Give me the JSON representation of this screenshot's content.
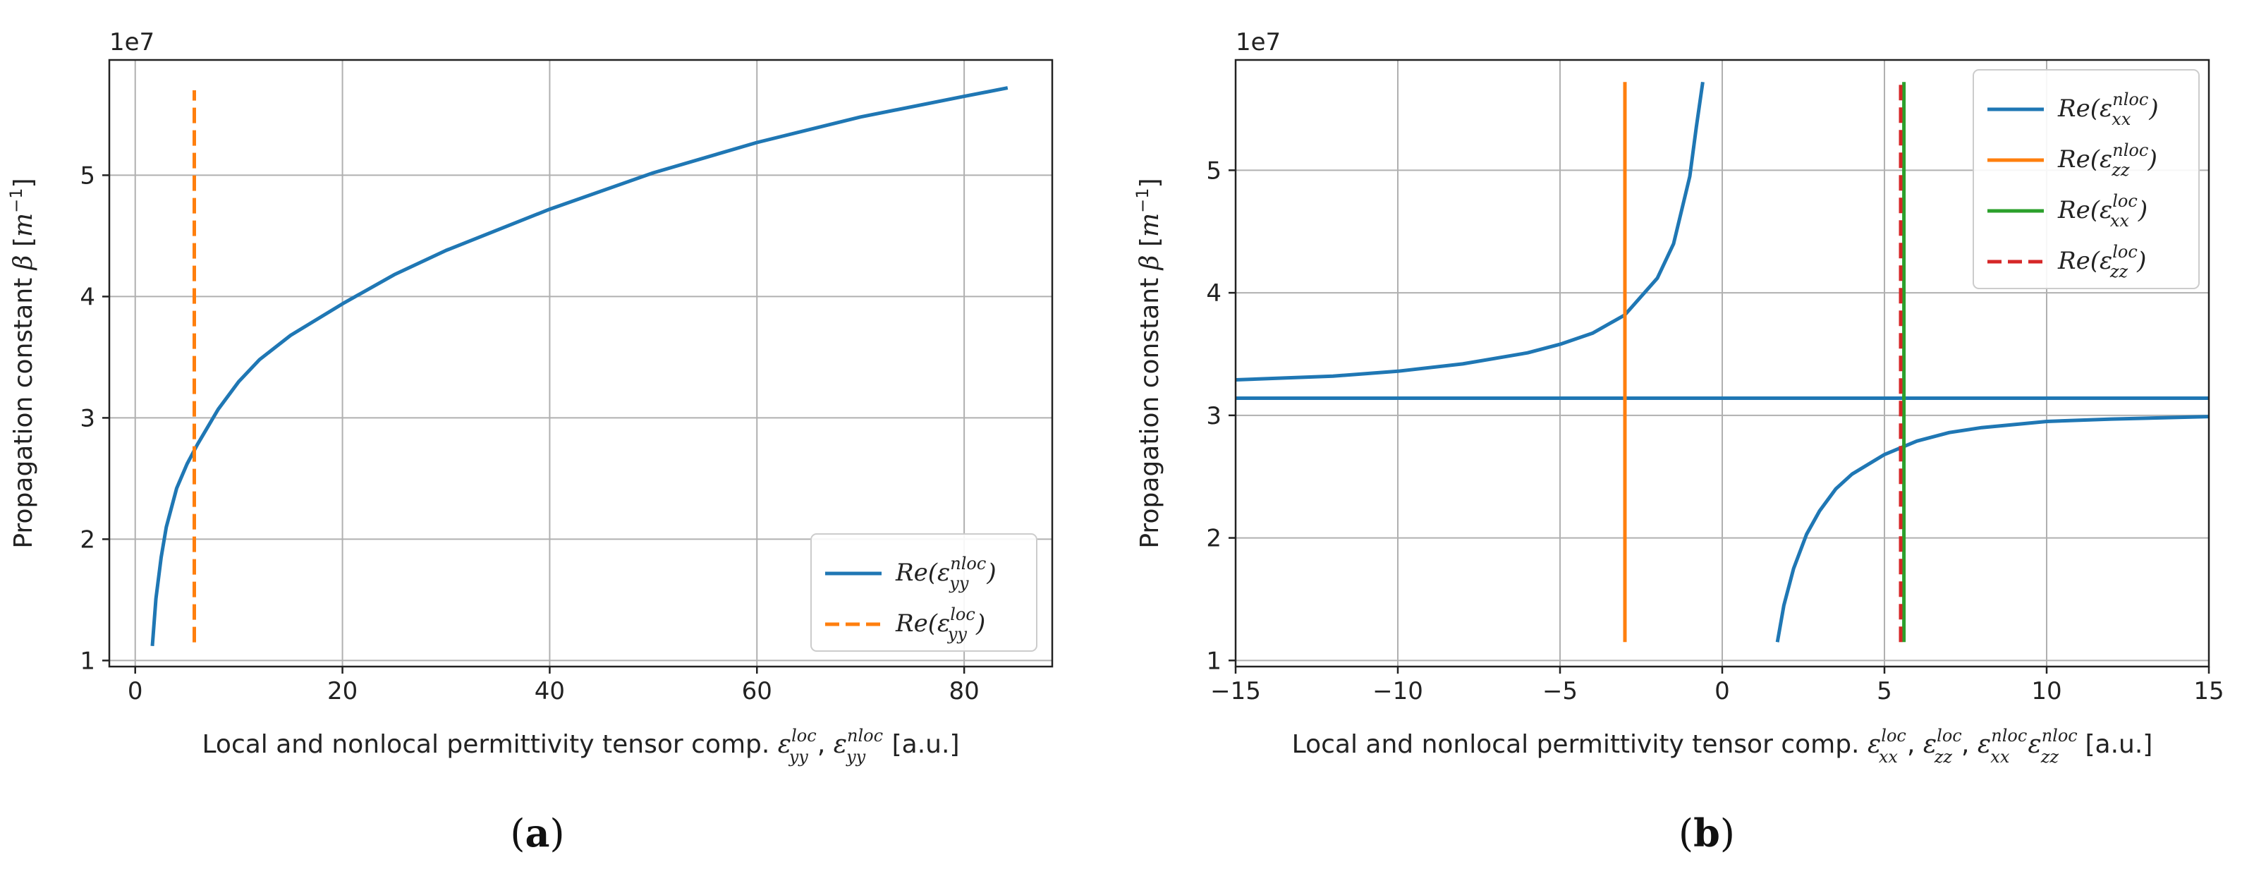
{
  "colors": {
    "blue": "#1f77b4",
    "orange": "#ff7f0e",
    "green": "#2ca02c",
    "red": "#d62728",
    "grid": "#b0b0b0"
  },
  "chart_data": [
    {
      "type": "line",
      "panel_caption": "a",
      "offset_text": "1e7",
      "xlabel": {
        "prefix": "Local and nonlocal permittivity tensor comp. ",
        "unit": " [a.u.]",
        "comps": [
          {
            "sup": "loc",
            "sub": "yy"
          },
          {
            "sup": "nloc",
            "sub": "yy"
          }
        ]
      },
      "ylabel": {
        "text": "Propagation constant ",
        "symbol": "β",
        "unit_open": " [",
        "unit_m": "m",
        "unit_exp": "−1",
        "unit_close": "]"
      },
      "xlim": [
        -2.5,
        88.5
      ],
      "ylim": [
        0.95,
        5.95
      ],
      "xticks": [
        0,
        20,
        40,
        60,
        80
      ],
      "yticks": [
        1,
        2,
        3,
        4,
        5
      ],
      "grid": true,
      "legend_position": "lower-right",
      "series": [
        {
          "name": "Re(ε_yy^nloc)",
          "legend": {
            "pre": "Re(",
            "sym": "ε",
            "sup": "nloc",
            "sub": "yy",
            "post": ")"
          },
          "color": "#1f77b4",
          "dash": "solid",
          "x": [
            1.65,
            2,
            2.5,
            3,
            4,
            5,
            6,
            8,
            10,
            12,
            15,
            20,
            25,
            30,
            40,
            50,
            60,
            70,
            80,
            84.2
          ],
          "y": [
            1.12,
            1.51,
            1.85,
            2.1,
            2.42,
            2.62,
            2.78,
            3.07,
            3.3,
            3.48,
            3.68,
            3.94,
            4.18,
            4.38,
            4.72,
            5.02,
            5.27,
            5.48,
            5.65,
            5.72
          ]
        },
        {
          "name": "Re(ε_yy^loc)",
          "legend": {
            "pre": "Re(",
            "sym": "ε",
            "sup": "loc",
            "sub": "yy",
            "post": ")"
          },
          "color": "#ff7f0e",
          "dash": "dashed",
          "x": [
            5.7,
            5.7
          ],
          "y": [
            1.15,
            5.7
          ]
        }
      ]
    },
    {
      "type": "line",
      "panel_caption": "b",
      "offset_text": "1e7",
      "xlabel": {
        "prefix": "Local and nonlocal permittivity tensor comp.  ",
        "unit": " [a.u.]",
        "comps": [
          {
            "sup": "loc",
            "sub": "xx"
          },
          {
            "sup": "loc",
            "sub": "zz"
          },
          {
            "sup": "nloc",
            "sub": "xx"
          },
          {
            "sup": "nloc",
            "sub": "zz"
          }
        ]
      },
      "ylabel": {
        "text": "Propagation constant ",
        "symbol": "β",
        "unit_open": " [",
        "unit_m": "m",
        "unit_exp": "−1",
        "unit_close": "]"
      },
      "xlim": [
        -15,
        15
      ],
      "ylim": [
        0.95,
        5.9
      ],
      "xticks": [
        -15,
        -10,
        -5,
        0,
        5,
        10,
        15
      ],
      "yticks": [
        1,
        2,
        3,
        4,
        5
      ],
      "grid": true,
      "legend_position": "upper-right",
      "series": [
        {
          "name": "Re(ε_xx^nloc)",
          "legend": {
            "pre": "Re(",
            "sym": "ε",
            "sup": "nloc",
            "sub": "xx",
            "post": ")"
          },
          "color": "#1f77b4",
          "dash": "solid",
          "segments": [
            {
              "x": [
                -15,
                -12,
                -10,
                -8,
                -6,
                -5,
                -4,
                -3,
                -2,
                -1.5,
                -1,
                -0.8,
                -0.6
              ],
              "y": [
                3.29,
                3.32,
                3.36,
                3.42,
                3.51,
                3.58,
                3.67,
                3.82,
                4.12,
                4.4,
                4.95,
                5.35,
                5.72
              ]
            },
            {
              "x": [
                -15,
                15
              ],
              "y": [
                3.14,
                3.14
              ]
            },
            {
              "x": [
                1.7,
                1.9,
                2.2,
                2.6,
                3,
                3.5,
                4,
                5,
                6,
                7,
                8,
                10,
                12,
                15
              ],
              "y": [
                1.15,
                1.45,
                1.75,
                2.03,
                2.22,
                2.4,
                2.52,
                2.68,
                2.79,
                2.86,
                2.9,
                2.95,
                2.97,
                2.99
              ]
            }
          ]
        },
        {
          "name": "Re(ε_zz^nloc)",
          "legend": {
            "pre": "Re(",
            "sym": "ε",
            "sup": "nloc",
            "sub": "zz",
            "post": ")"
          },
          "color": "#ff7f0e",
          "dash": "solid",
          "x": [
            -3,
            -3
          ],
          "y": [
            1.15,
            5.72
          ]
        },
        {
          "name": "Re(ε_xx^loc)",
          "legend": {
            "pre": "Re(",
            "sym": "ε",
            "sup": "loc",
            "sub": "xx",
            "post": ")"
          },
          "color": "#2ca02c",
          "dash": "solid",
          "x": [
            5.6,
            5.6
          ],
          "y": [
            1.15,
            5.72
          ]
        },
        {
          "name": "Re(ε_zz^loc)",
          "legend": {
            "pre": "Re(",
            "sym": "ε",
            "sup": "loc",
            "sub": "zz",
            "post": ")"
          },
          "color": "#d62728",
          "dash": "dashed",
          "x": [
            5.5,
            5.5
          ],
          "y": [
            1.15,
            5.72
          ]
        }
      ]
    }
  ]
}
